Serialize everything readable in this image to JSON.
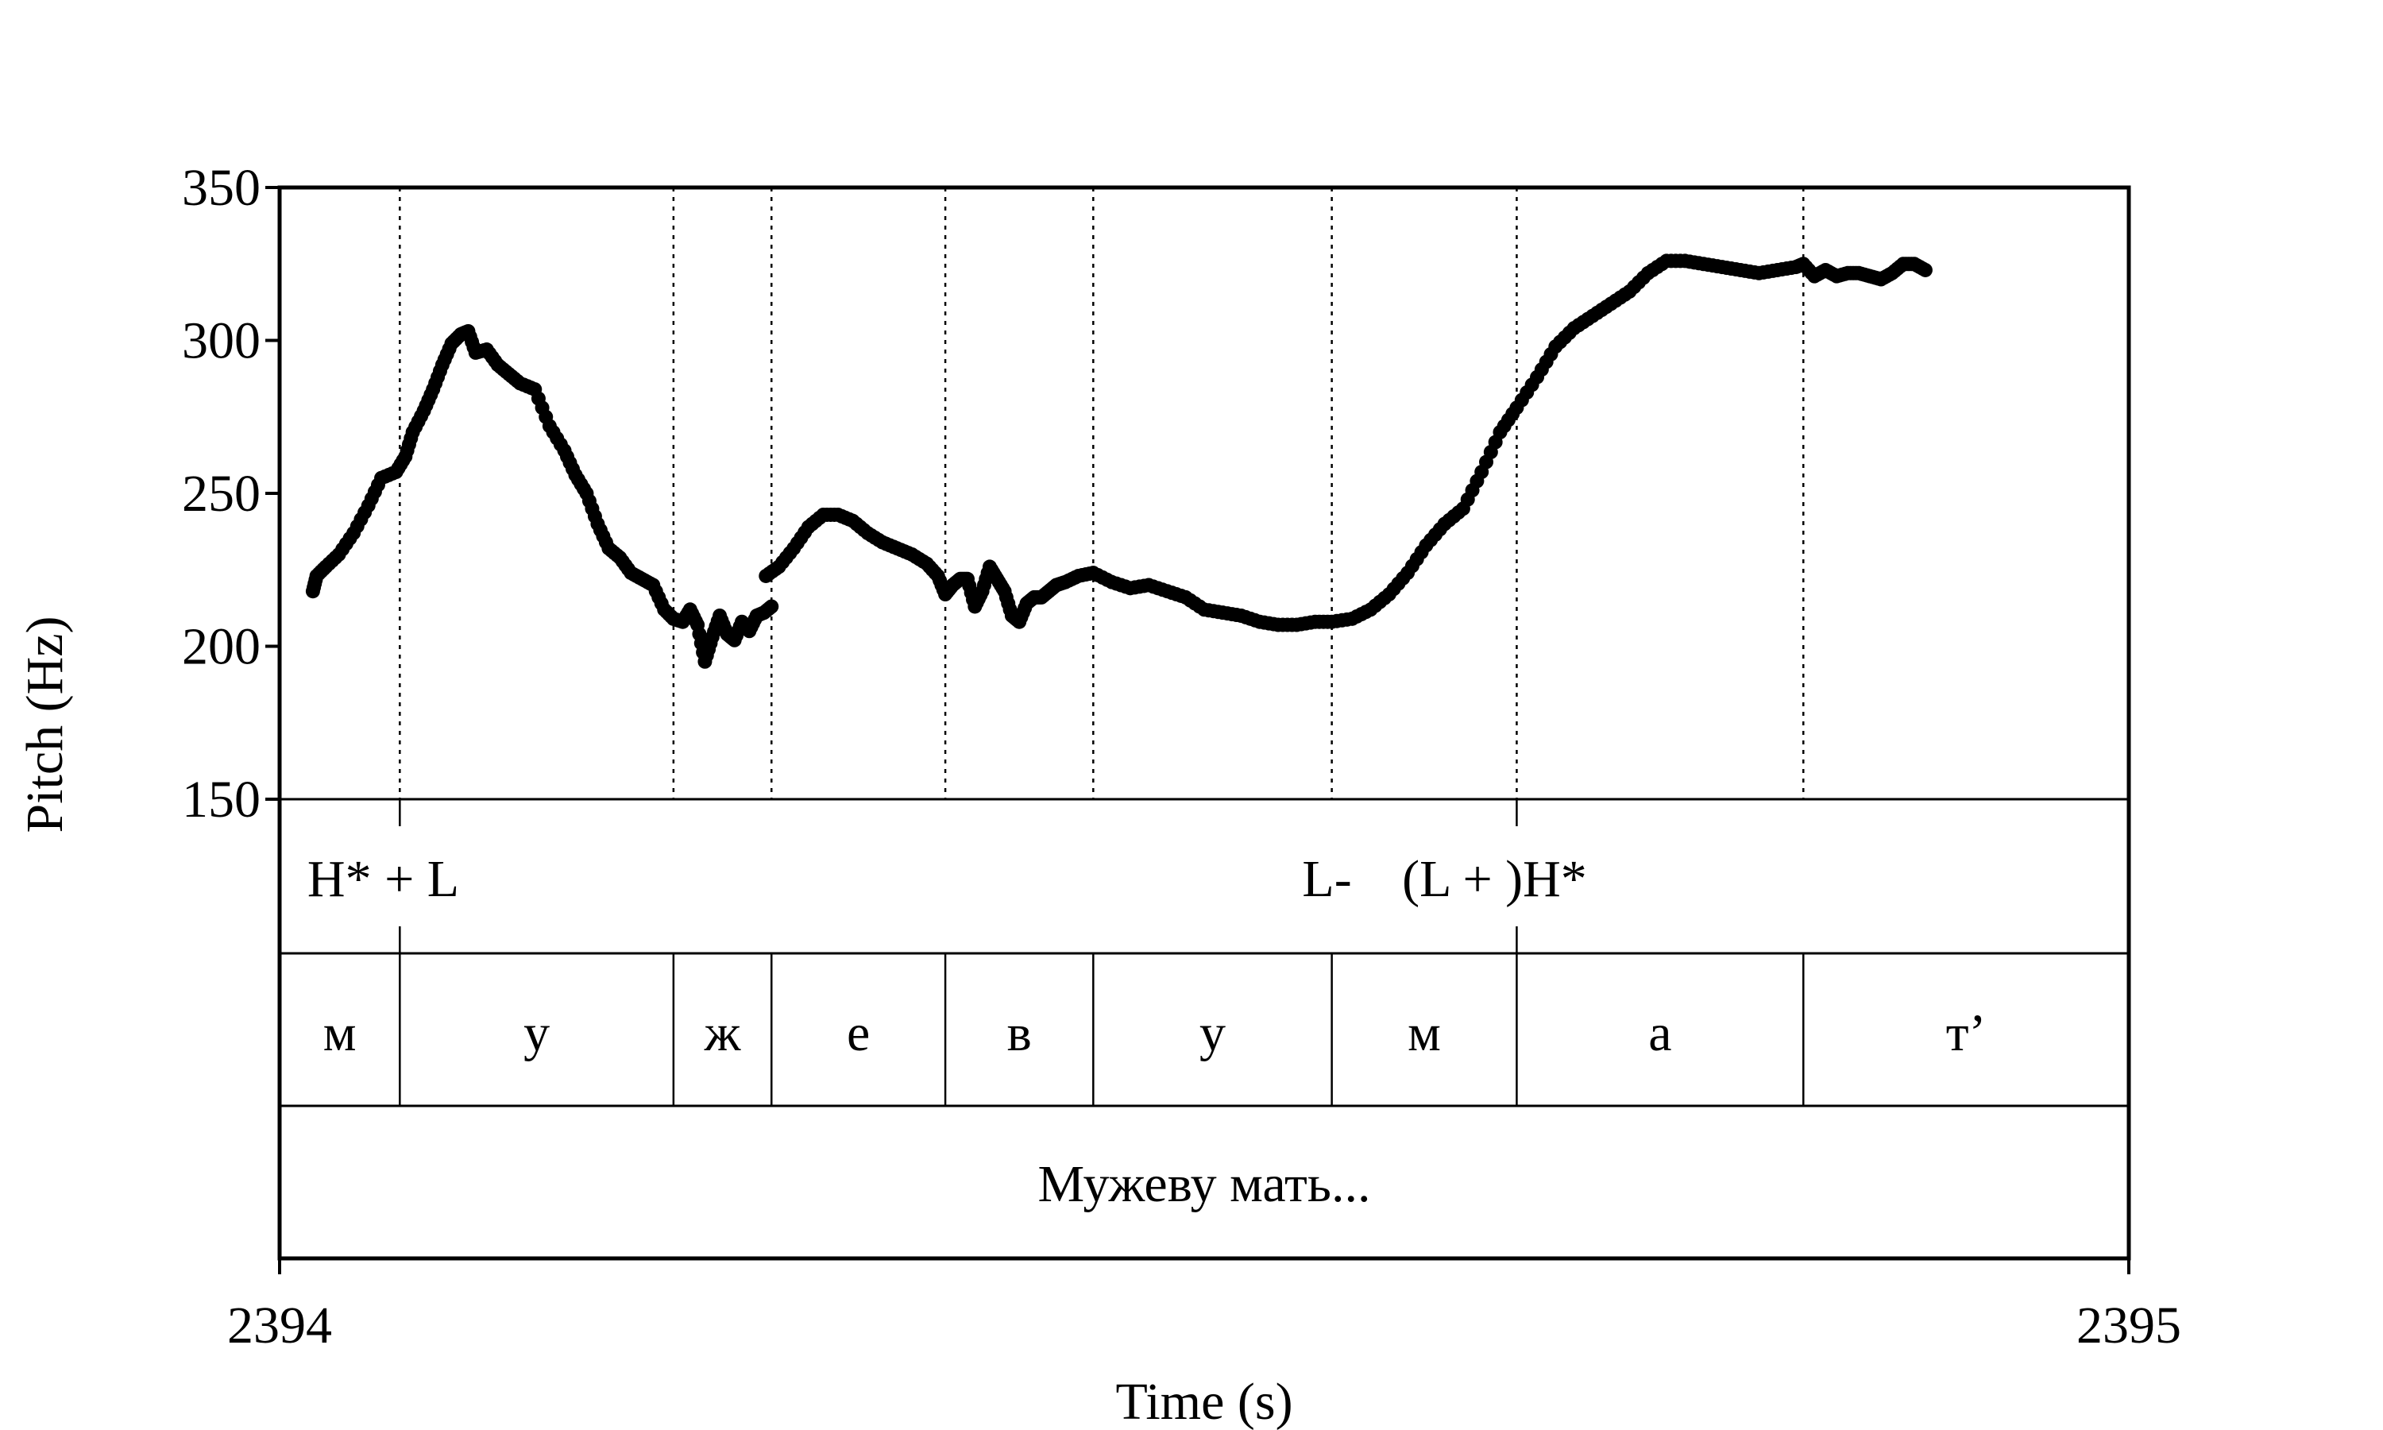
{
  "chart_data": {
    "type": "scatter",
    "ylabel": "Pitch (Hz)",
    "xlabel": "Time (s)",
    "xlim": [
      2394,
      2395
    ],
    "ylim": [
      150,
      350
    ],
    "x_ticks": [
      "2394",
      "2395"
    ],
    "y_ticks": [
      "350",
      "300",
      "250",
      "200",
      "150"
    ],
    "grid": "dotted vertical lines at segment boundaries",
    "marker_color": "#000000",
    "boundaries": [
      2394.065,
      2394.213,
      2394.266,
      2394.36,
      2394.44,
      2394.569,
      2394.669,
      2394.824
    ],
    "tones": [
      {
        "label": "H* + L",
        "t": 2394.015
      },
      {
        "label": "L-",
        "t": 2394.553
      },
      {
        "label": "(L + )H*",
        "t": 2394.607
      }
    ],
    "segments": [
      {
        "label": "м",
        "start": 2394.0,
        "end": 2394.065
      },
      {
        "label": "у",
        "start": 2394.065,
        "end": 2394.213
      },
      {
        "label": "ж",
        "start": 2394.213,
        "end": 2394.266
      },
      {
        "label": "е",
        "start": 2394.266,
        "end": 2394.36
      },
      {
        "label": "в",
        "start": 2394.36,
        "end": 2394.44
      },
      {
        "label": "у",
        "start": 2394.44,
        "end": 2394.569
      },
      {
        "label": "м",
        "start": 2394.569,
        "end": 2394.669
      },
      {
        "label": "а",
        "start": 2394.669,
        "end": 2394.824
      },
      {
        "label": "т’",
        "start": 2394.824,
        "end": 2395.0
      }
    ],
    "phrase": "Мужеву мать...",
    "pitch_runs": [
      {
        "x": [
          2394.018,
          2394.02,
          2394.025,
          2394.032,
          2394.04,
          2394.048,
          2394.055,
          2394.063,
          2394.068,
          2394.072,
          2394.078,
          2394.083,
          2394.088,
          2394.093,
          2394.098,
          2394.102,
          2394.106,
          2394.112,
          2394.118,
          2394.124,
          2394.13,
          2394.138,
          2394.146,
          2394.154,
          2394.16,
          2394.166,
          2394.172,
          2394.178,
          2394.184,
          2394.19,
          2394.196,
          2394.202,
          2394.208,
          2394.213
        ],
        "y": [
          218,
          223,
          226,
          230,
          237,
          246,
          255,
          257,
          262,
          270,
          277,
          284,
          292,
          299,
          302,
          303,
          296,
          297,
          292,
          289,
          286,
          284,
          272,
          264,
          256,
          250,
          240,
          232,
          229,
          224,
          222,
          220,
          212,
          209
        ]
      },
      {
        "x": [
          2394.213,
          2394.218,
          2394.222,
          2394.226,
          2394.23,
          2394.234,
          2394.238,
          2394.242,
          2394.246,
          2394.25,
          2394.254,
          2394.258,
          2394.262,
          2394.266
        ],
        "y": [
          209,
          208,
          212,
          207,
          195,
          203,
          210,
          204,
          202,
          208,
          205,
          210,
          211,
          213
        ]
      },
      {
        "x": [
          2394.263,
          2394.27,
          2394.278,
          2394.286,
          2394.294,
          2394.302,
          2394.31,
          2394.318,
          2394.326,
          2394.334,
          2394.342,
          2394.35,
          2394.356,
          2394.36,
          2394.364,
          2394.368,
          2394.372,
          2394.376,
          2394.38,
          2394.384,
          2394.388,
          2394.392,
          2394.396,
          2394.4,
          2394.404,
          2394.408,
          2394.412,
          2394.416,
          2394.42,
          2394.425,
          2394.432,
          2394.44,
          2394.45,
          2394.46,
          2394.47,
          2394.48,
          2394.49,
          2394.5,
          2394.51,
          2394.52,
          2394.53,
          2394.54,
          2394.55,
          2394.56,
          2394.569,
          2394.58,
          2394.59,
          2394.6,
          2394.61,
          2394.62,
          2394.63,
          2394.64,
          2394.65,
          2394.66,
          2394.669,
          2394.68,
          2394.69,
          2394.7,
          2394.71,
          2394.72,
          2394.73,
          2394.74,
          2394.75,
          2394.76,
          2394.77,
          2394.78,
          2394.79,
          2394.8,
          2394.81,
          2394.82,
          2394.824,
          2394.83,
          2394.836,
          2394.842,
          2394.848,
          2394.854,
          2394.86,
          2394.866,
          2394.872,
          2394.878,
          2394.884,
          2394.89
        ],
        "y": [
          223,
          226,
          232,
          239,
          243,
          243,
          241,
          237,
          234,
          232,
          230,
          227,
          223,
          217,
          220,
          222,
          222,
          213,
          218,
          226,
          222,
          218,
          210,
          208,
          214,
          216,
          216,
          218,
          220,
          221,
          223,
          224,
          221,
          219,
          220,
          218,
          216,
          212,
          211,
          210,
          208,
          207,
          207,
          208,
          208,
          209,
          212,
          217,
          224,
          233,
          240,
          245,
          257,
          270,
          278,
          288,
          298,
          304,
          308,
          312,
          316,
          322,
          326,
          326,
          325,
          324,
          323,
          322,
          323,
          324,
          325,
          321,
          323,
          321,
          322,
          322,
          321,
          320,
          322,
          325,
          325,
          323
        ]
      }
    ]
  }
}
